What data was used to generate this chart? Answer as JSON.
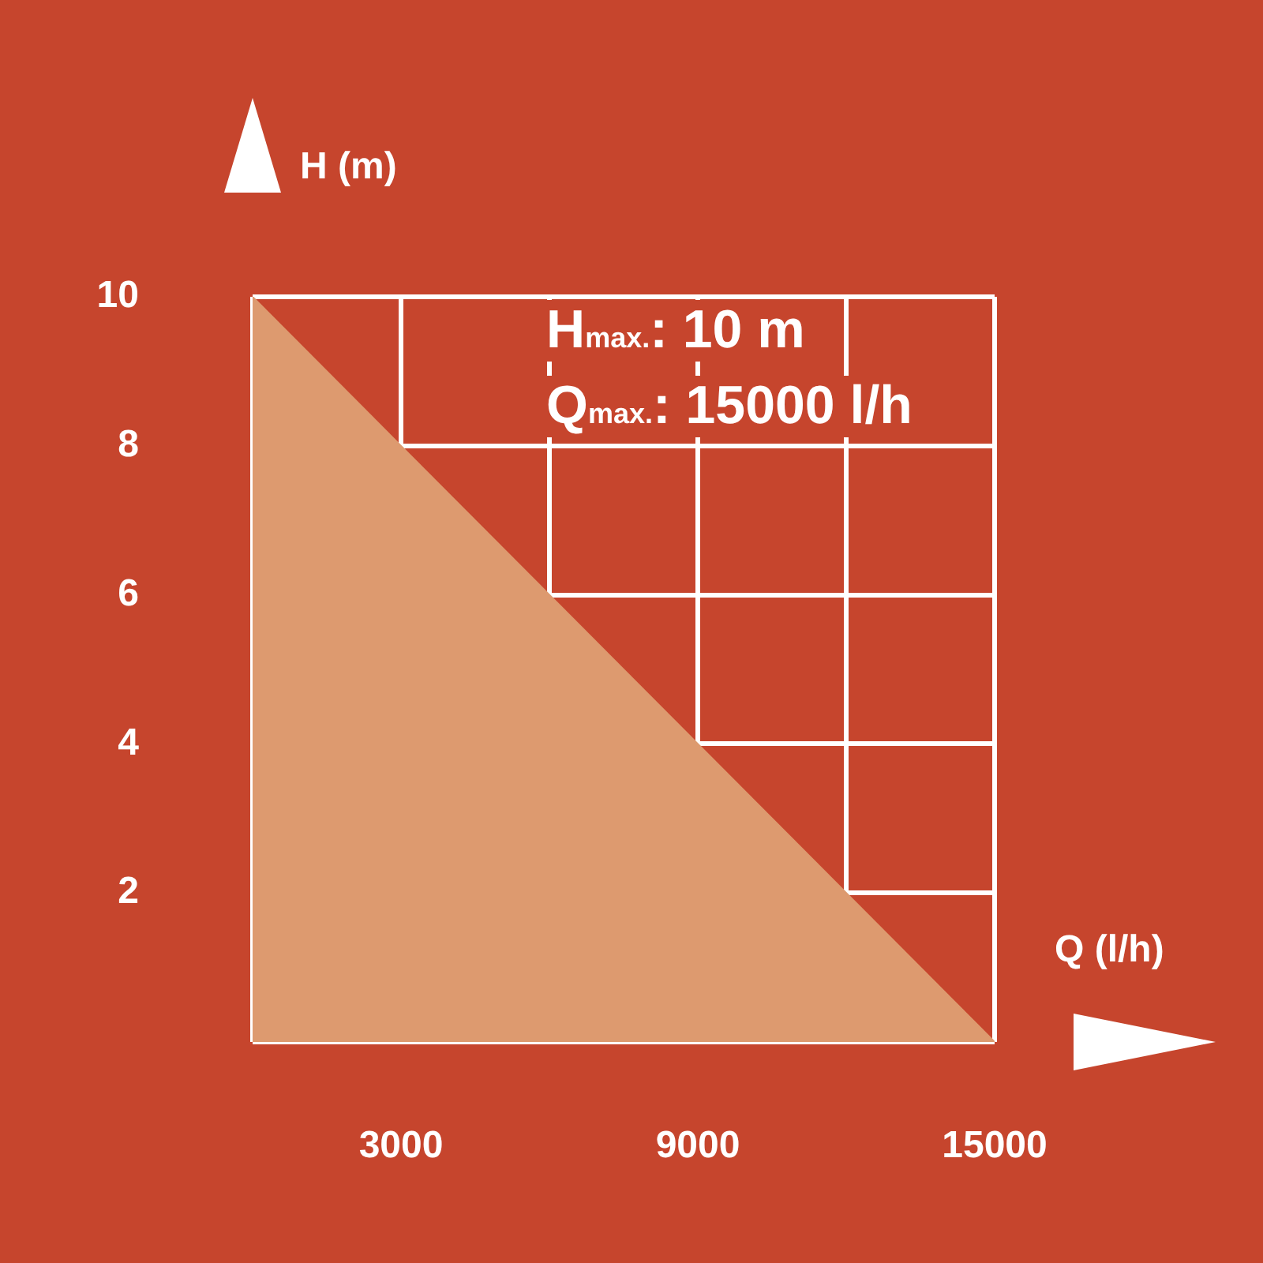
{
  "chart_data": {
    "type": "area",
    "xlabel": "Q (l/h)",
    "ylabel": "H (m)",
    "x": [
      0,
      15000
    ],
    "series": [
      {
        "color": "#dd9a6f",
        "values": [
          10,
          0
        ]
      }
    ],
    "xlim": [
      0,
      15000
    ],
    "ylim": [
      0,
      10
    ],
    "xticks": [
      {
        "value": 0,
        "label": null
      },
      3000,
      {
        "value": 6000,
        "label": null
      },
      9000,
      {
        "value": 12000,
        "label": null
      },
      15000
    ],
    "yticks": [
      {
        "value": 0,
        "label": null
      },
      2,
      4,
      6,
      8,
      10
    ],
    "grid": true,
    "annotations": [
      "H$_{max.}$: 10 m",
      "Q$_{max.}$: 15000 l/h"
    ]
  }
}
